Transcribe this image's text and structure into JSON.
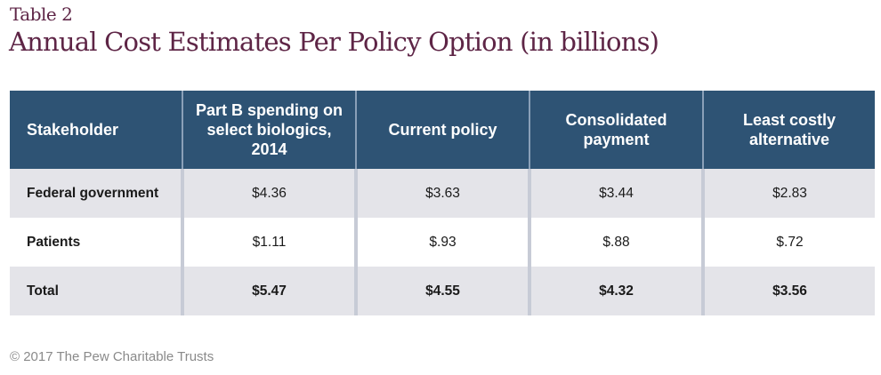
{
  "eyebrow": "Table 2",
  "title": "Annual Cost Estimates Per Policy Option (in billions)",
  "table": {
    "headers": [
      "Stakeholder",
      "Part B spending on select biologics, 2014",
      "Current policy",
      "Consolidated payment",
      "Least costly alternative"
    ],
    "rows": [
      {
        "stakeholder": "Federal government",
        "values": [
          "$4.36",
          "$3.63",
          "$3.44",
          "$2.83"
        ]
      },
      {
        "stakeholder": "Patients",
        "values": [
          "$1.11",
          "$.93",
          "$.88",
          "$.72"
        ]
      },
      {
        "stakeholder": "Total",
        "values": [
          "$5.47",
          "$4.55",
          "$4.32",
          "$3.56"
        ]
      }
    ]
  },
  "footer": "© 2017 The Pew Charitable Trusts",
  "colors": {
    "title": "#5e2546",
    "header_bg": "#2e5374",
    "row_shade": "#e4e4e9",
    "divider": "#c7cbd6"
  }
}
